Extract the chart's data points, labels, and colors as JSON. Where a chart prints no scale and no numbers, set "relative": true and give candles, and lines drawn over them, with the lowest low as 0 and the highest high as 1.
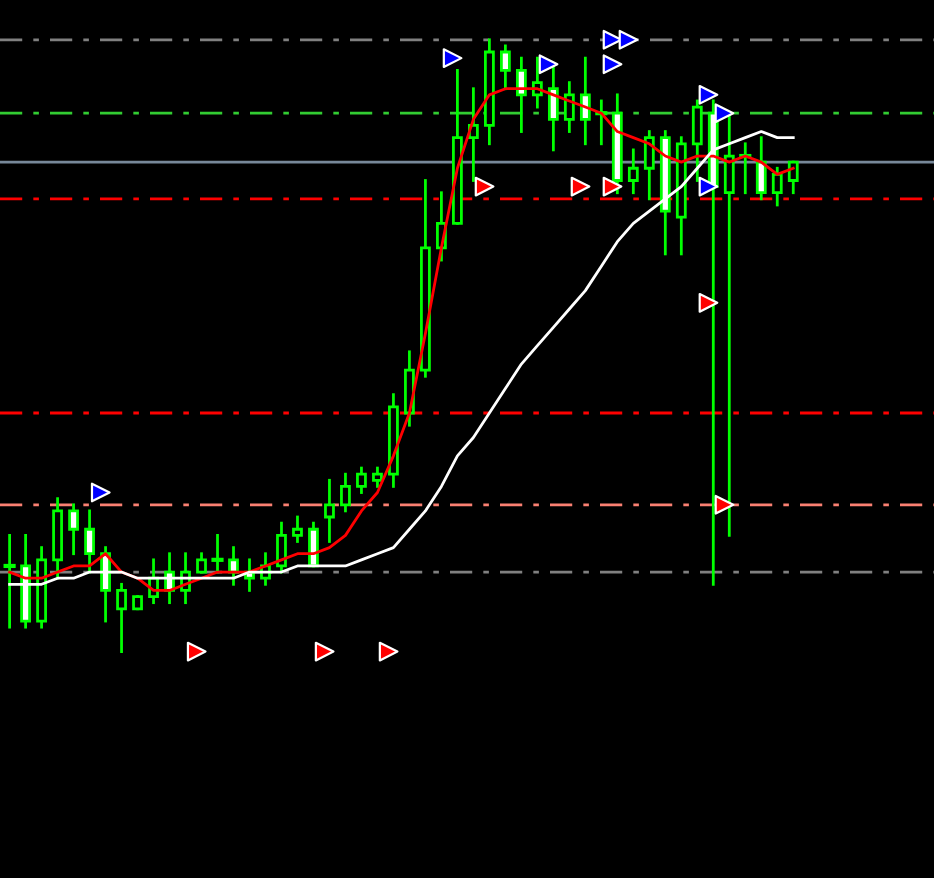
{
  "chart_data": {
    "type": "candlestick",
    "relative": true,
    "color": "#00ff00",
    "legend": false,
    "categories": [
      null,
      null,
      null,
      null,
      null,
      null,
      null,
      null,
      null,
      null,
      null,
      null,
      null,
      null,
      null,
      null,
      null,
      null,
      null,
      null,
      null,
      null,
      null,
      null,
      null,
      null,
      null,
      null,
      null,
      null,
      null,
      null,
      null,
      null,
      null,
      null,
      null,
      null,
      null,
      null,
      null,
      null,
      null,
      null,
      null,
      null,
      null,
      null,
      null,
      null
    ],
    "ohlc": [
      [
        0.14,
        0.19,
        0.04,
        0.14
      ],
      [
        0.14,
        0.19,
        0.04,
        0.05
      ],
      [
        0.05,
        0.17,
        0.04,
        0.15
      ],
      [
        0.15,
        0.25,
        0.12,
        0.23
      ],
      [
        0.23,
        0.24,
        0.16,
        0.2
      ],
      [
        0.2,
        0.23,
        0.13,
        0.16
      ],
      [
        0.16,
        0.17,
        0.05,
        0.1
      ],
      [
        0.07,
        0.11,
        0.0,
        0.1
      ],
      [
        0.07,
        0.09,
        0.07,
        0.09
      ],
      [
        0.09,
        0.15,
        0.08,
        0.12
      ],
      [
        0.13,
        0.16,
        0.08,
        0.1
      ],
      [
        0.1,
        0.16,
        0.08,
        0.13
      ],
      [
        0.13,
        0.16,
        0.13,
        0.15
      ],
      [
        0.15,
        0.19,
        0.13,
        0.15
      ],
      [
        0.15,
        0.17,
        0.11,
        0.13
      ],
      [
        0.13,
        0.15,
        0.1,
        0.12
      ],
      [
        0.12,
        0.16,
        0.11,
        0.14
      ],
      [
        0.14,
        0.21,
        0.13,
        0.19
      ],
      [
        0.19,
        0.22,
        0.18,
        0.2
      ],
      [
        0.2,
        0.21,
        0.14,
        0.14
      ],
      [
        0.22,
        0.28,
        0.18,
        0.24
      ],
      [
        0.24,
        0.29,
        0.23,
        0.27
      ],
      [
        0.27,
        0.3,
        0.26,
        0.29
      ],
      [
        0.28,
        0.3,
        0.27,
        0.29
      ],
      [
        0.29,
        0.42,
        0.27,
        0.4
      ],
      [
        0.39,
        0.49,
        0.37,
        0.46
      ],
      [
        0.46,
        0.77,
        0.45,
        0.66
      ],
      [
        0.66,
        0.75,
        0.64,
        0.7
      ],
      [
        0.7,
        0.95,
        0.7,
        0.84
      ],
      [
        0.84,
        0.92,
        0.77,
        0.86
      ],
      [
        0.86,
        1.0,
        0.83,
        0.98
      ],
      [
        0.98,
        0.99,
        0.92,
        0.95
      ],
      [
        0.95,
        0.97,
        0.85,
        0.91
      ],
      [
        0.91,
        0.97,
        0.89,
        0.93
      ],
      [
        0.92,
        0.96,
        0.82,
        0.87
      ],
      [
        0.87,
        0.93,
        0.85,
        0.91
      ],
      [
        0.91,
        0.97,
        0.83,
        0.87
      ],
      [
        0.88,
        0.9,
        0.83,
        0.88
      ],
      [
        0.88,
        0.91,
        0.75,
        0.77
      ],
      [
        0.77,
        0.82,
        0.75,
        0.79
      ],
      [
        0.79,
        0.85,
        0.74,
        0.84
      ],
      [
        0.84,
        0.85,
        0.65,
        0.72
      ],
      [
        0.71,
        0.84,
        0.65,
        0.83
      ],
      [
        0.83,
        0.9,
        0.77,
        0.89
      ],
      [
        0.88,
        0.9,
        0.11,
        0.76
      ],
      [
        0.75,
        0.88,
        0.19,
        0.81
      ],
      [
        0.81,
        0.83,
        0.75,
        0.81
      ],
      [
        0.8,
        0.84,
        0.74,
        0.75
      ],
      [
        0.75,
        0.79,
        0.73,
        0.78
      ],
      [
        0.77,
        0.8,
        0.75,
        0.8
      ]
    ],
    "series": [
      {
        "type": "line",
        "color": "#ff0000",
        "values": [
          0.13,
          0.12,
          0.12,
          0.13,
          0.14,
          0.14,
          0.16,
          0.13,
          0.12,
          0.1,
          0.1,
          0.11,
          0.12,
          0.13,
          0.13,
          0.13,
          0.14,
          0.15,
          0.16,
          0.16,
          0.17,
          0.19,
          0.23,
          0.26,
          0.32,
          0.39,
          0.52,
          0.66,
          0.79,
          0.87,
          0.91,
          0.92,
          0.92,
          0.92,
          0.91,
          0.9,
          0.89,
          0.88,
          0.85,
          0.84,
          0.83,
          0.81,
          0.8,
          0.81,
          0.81,
          0.8,
          0.81,
          0.8,
          0.78,
          0.79
        ]
      },
      {
        "type": "line",
        "color": "#ffffff",
        "values": [
          0.11,
          0.11,
          0.11,
          0.12,
          0.12,
          0.13,
          0.13,
          0.13,
          0.12,
          0.12,
          0.12,
          0.12,
          0.12,
          0.12,
          0.12,
          0.13,
          0.13,
          0.13,
          0.14,
          0.14,
          0.14,
          0.14,
          0.15,
          0.16,
          0.17,
          0.2,
          0.23,
          0.27,
          0.32,
          0.35,
          0.39,
          0.43,
          0.47,
          0.5,
          0.53,
          0.56,
          0.59,
          0.63,
          0.67,
          0.7,
          0.72,
          0.74,
          0.76,
          0.79,
          0.82,
          0.83,
          0.84,
          0.85,
          0.84,
          0.84
        ]
      },
      {
        "type": "scatter",
        "color": "#0000ff",
        "marker": "triangle",
        "values": [
          null,
          null,
          null,
          null,
          null,
          null,
          0.26,
          null,
          null,
          null,
          null,
          null,
          null,
          null,
          null,
          null,
          null,
          null,
          null,
          null,
          null,
          null,
          null,
          null,
          null,
          null,
          null,
          null,
          0.97,
          null,
          null,
          null,
          null,
          null,
          0.96,
          null,
          null,
          null,
          1.0,
          1.0,
          null,
          null,
          null,
          null,
          0.91,
          0.88,
          null,
          null,
          null,
          null
        ]
      },
      {
        "type": "scatter",
        "color": "#0000ff",
        "marker": "triangle",
        "values": [
          null,
          null,
          null,
          null,
          null,
          null,
          null,
          null,
          null,
          null,
          null,
          null,
          null,
          null,
          null,
          null,
          null,
          null,
          null,
          null,
          null,
          null,
          null,
          null,
          null,
          null,
          null,
          null,
          null,
          null,
          null,
          null,
          null,
          null,
          null,
          null,
          null,
          null,
          0.96,
          null,
          null,
          null,
          null,
          null,
          0.76,
          null,
          null,
          null,
          null,
          null
        ]
      },
      {
        "type": "scatter",
        "color": "#ff0000",
        "marker": "triangle",
        "values": [
          null,
          null,
          null,
          null,
          null,
          null,
          null,
          null,
          null,
          null,
          null,
          null,
          0.0,
          null,
          null,
          null,
          null,
          null,
          null,
          null,
          0.0,
          null,
          null,
          null,
          0.0,
          null,
          null,
          null,
          null,
          null,
          0.76,
          null,
          null,
          null,
          null,
          null,
          0.76,
          null,
          0.76,
          null,
          null,
          null,
          null,
          null,
          0.57,
          0.24,
          null,
          null,
          null,
          null
        ]
      }
    ],
    "ref_lines": [
      {
        "axis": "y",
        "value": 1.0,
        "color": "#808080",
        "line_style": "dashed"
      },
      {
        "axis": "y",
        "value": 0.88,
        "color": "#32cd32",
        "line_style": "dashed"
      },
      {
        "axis": "y",
        "value": 0.8,
        "color": "#778899",
        "line_style": "solid"
      },
      {
        "axis": "y",
        "value": 0.74,
        "color": "#ff0000",
        "line_style": "dashed"
      },
      {
        "axis": "y",
        "value": 0.39,
        "color": "#ff0000",
        "line_style": "dashed"
      },
      {
        "axis": "y",
        "value": 0.24,
        "color": "#fa8072",
        "line_style": "dashed"
      },
      {
        "axis": "y",
        "value": 0.13,
        "color": "#808080",
        "line_style": "dashed"
      }
    ]
  }
}
